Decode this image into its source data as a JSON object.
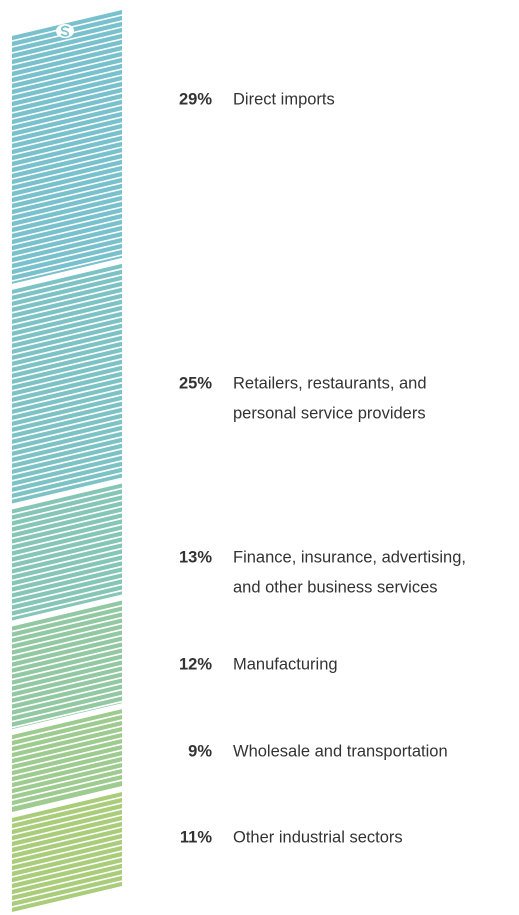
{
  "chart_data": {
    "type": "stack",
    "categories": [
      [
        "Direct imports"
      ],
      [
        "Retailers, restaurants, and",
        "personal service providers"
      ],
      [
        "Finance, insurance, advertising,",
        "and other business services"
      ],
      [
        "Manufacturing"
      ],
      [
        "Wholesale and transportation"
      ],
      [
        "Other industrial sectors"
      ]
    ],
    "values": [
      29,
      25,
      13,
      12,
      9,
      11
    ],
    "value_labels": [
      "29%",
      "25%",
      "13%",
      "12%",
      "9%",
      "11%"
    ],
    "colors": [
      "#79c1cd",
      "#7dc3c6",
      "#86c6b6",
      "#92c9a3",
      "#9ecb8f",
      "#aacd7c"
    ]
  }
}
